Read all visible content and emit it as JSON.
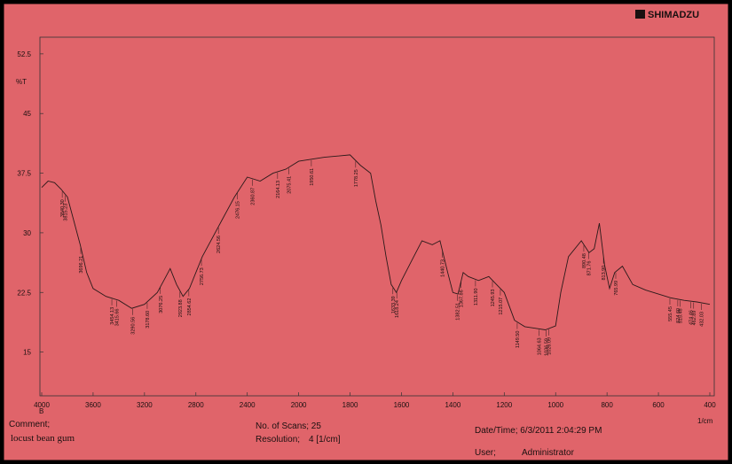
{
  "brand": "SHIMADZU",
  "chart_data": {
    "type": "line",
    "y_label": "%T",
    "x_label": "1/cm",
    "x_sublabel": "B",
    "xlim": [
      4000,
      400
    ],
    "ylim": [
      9.5,
      54.6
    ],
    "xticks": [
      4000,
      3600,
      3200,
      2800,
      2400,
      2000,
      1800,
      1600,
      1400,
      1200,
      1000,
      800,
      600,
      400
    ],
    "yticks": [
      15,
      22.5,
      30,
      37.5,
      45,
      52.5
    ],
    "x": [
      4000,
      3950,
      3900,
      3850,
      3800,
      3750,
      3700,
      3650,
      3600,
      3500,
      3400,
      3300,
      3200,
      3100,
      3050,
      3000,
      2950,
      2900,
      2850,
      2750,
      2600,
      2500,
      2400,
      2300,
      2200,
      2100,
      2000,
      1900,
      1800,
      1760,
      1720,
      1700,
      1680,
      1660,
      1640,
      1620,
      1600,
      1560,
      1520,
      1480,
      1450,
      1420,
      1400,
      1380,
      1360,
      1340,
      1300,
      1260,
      1230,
      1200,
      1160,
      1120,
      1080,
      1040,
      1000,
      980,
      950,
      900,
      870,
      850,
      830,
      810,
      790,
      770,
      740,
      700,
      650,
      600,
      550,
      500,
      450,
      400
    ],
    "series": [
      {
        "color": "#2a1a1a",
        "values": [
          35.7,
          36.5,
          36.3,
          35.5,
          34.5,
          31.5,
          28.5,
          25,
          23,
          22,
          21.5,
          20.5,
          21,
          22.5,
          24,
          25.5,
          23.5,
          22,
          23,
          27,
          31.5,
          34.5,
          37,
          36.5,
          37.5,
          38,
          39,
          39.5,
          39.8,
          38.5,
          37.5,
          34,
          31,
          27,
          23.5,
          22.5,
          24,
          26.5,
          29,
          28.5,
          29,
          25,
          22.5,
          22.3,
          25,
          24.5,
          24,
          24.5,
          23.5,
          22.5,
          19,
          18.2,
          18,
          17.8,
          18.3,
          22.5,
          27,
          29,
          27.5,
          28,
          31.2,
          26,
          23,
          25,
          25.8,
          23.5,
          22.8,
          22.3,
          21.8,
          21.5,
          21.3,
          21
        ]
      }
    ],
    "peaks": [
      {
        "value": 3840.3,
        "label": "3840.30"
      },
      {
        "value": 3815.23,
        "label": "3815.23"
      },
      {
        "value": 3696.21,
        "label": "3696.21"
      },
      {
        "value": 3454.13,
        "label": "3454.13"
      },
      {
        "value": 3415.66,
        "label": "3415.66"
      },
      {
        "value": 3290.56,
        "label": "3290.56"
      },
      {
        "value": 3178.6,
        "label": "3178.60"
      },
      {
        "value": 3076.25,
        "label": "3076.25"
      },
      {
        "value": 2923.88,
        "label": "2923.88"
      },
      {
        "value": 2854.62,
        "label": "2854.62"
      },
      {
        "value": 2756.73,
        "label": "2756.73"
      },
      {
        "value": 2624.56,
        "label": "2624.56"
      },
      {
        "value": 2476.15,
        "label": "2476.15"
      },
      {
        "value": 2360.87,
        "label": "2360.87"
      },
      {
        "value": 2164.13,
        "label": "2164.13"
      },
      {
        "value": 2075.41,
        "label": "2075.41"
      },
      {
        "value": 1950.61,
        "label": "1950.61"
      },
      {
        "value": 1778.25,
        "label": "1778.25"
      },
      {
        "value": 1633.39,
        "label": "1633.39"
      },
      {
        "value": 1618.24,
        "label": "1618.24"
      },
      {
        "value": 1440.73,
        "label": "1440.73"
      },
      {
        "value": 1382.51,
        "label": "1382.51"
      },
      {
        "value": 1367.86,
        "label": "1367.86"
      },
      {
        "value": 1311.9,
        "label": "1311.90"
      },
      {
        "value": 1245.93,
        "label": "1245.93"
      },
      {
        "value": 1215.07,
        "label": "1215.07"
      },
      {
        "value": 1149.5,
        "label": "1149.50"
      },
      {
        "value": 1064.63,
        "label": "1064.63"
      },
      {
        "value": 1036.59,
        "label": "1036.59"
      },
      {
        "value": 1026.09,
        "label": "1026.09"
      },
      {
        "value": 890.48,
        "label": "890.48"
      },
      {
        "value": 871.76,
        "label": "871.76"
      },
      {
        "value": 813.9,
        "label": "813.90"
      },
      {
        "value": 765.99,
        "label": "765.99"
      },
      {
        "value": 555.45,
        "label": "555.45"
      },
      {
        "value": 524.6,
        "label": "524.60"
      },
      {
        "value": 515.48,
        "label": "515.48"
      },
      {
        "value": 474.46,
        "label": "474.46"
      },
      {
        "value": 462.89,
        "label": "462.89"
      },
      {
        "value": 432.03,
        "label": "432.03"
      }
    ]
  },
  "footer": {
    "comment_label": "Comment;",
    "comment": "locust bean gum",
    "scans": "No. of Scans; 25",
    "resolution_label": "Resolution;",
    "resolution": "4 [1/cm]",
    "date": "Date/Time; 6/3/2011 2:04:29 PM",
    "user_label": "User;",
    "user": "Administrator"
  }
}
